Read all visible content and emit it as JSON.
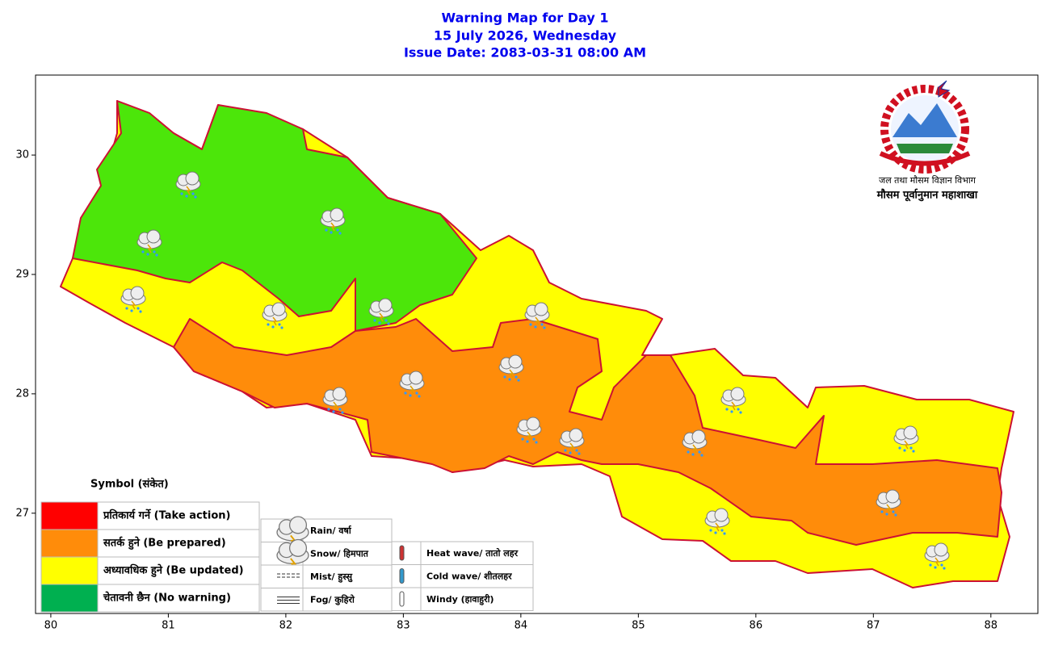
{
  "header": {
    "title": [
      "Warning Map for Day 1",
      "15 July 2026, Wednesday",
      "Issue Date: 2083-03-31 08:00 AM"
    ]
  },
  "map": {
    "xlim": [
      79.87,
      88.4
    ],
    "ylim": [
      26.16,
      30.67
    ],
    "xticks": [
      80,
      81,
      82,
      83,
      84,
      85,
      86,
      87,
      88
    ],
    "yticks": [
      27,
      28,
      29,
      30
    ]
  },
  "logo": {
    "line1": "जल तथा मौसम विज्ञान विभाग",
    "line2": "मौसम पूर्वानुमान महाशाखा"
  },
  "legend": {
    "title": "Symbol (संकेत)",
    "levels": [
      {
        "label": "प्रतिकार्य गर्ने (Take action)",
        "color": "#ff0000"
      },
      {
        "label": "सतर्क हुने (Be prepared)",
        "color": "#ff8c0a"
      },
      {
        "label": "अध्यावधिक हुने (Be updated)",
        "color": "#ffff00"
      },
      {
        "label": "चेतावनी छैन (No warning)",
        "color": "#00b050"
      }
    ],
    "symbols": [
      "Rain/ वर्षा",
      "Snow/ हिमपात",
      "Mist/ हुस्सु",
      "Fog/ कुहिरो"
    ],
    "symbols2": [
      "Heat wave/ तातो लहर",
      "Cold wave/ शीतलहर",
      "Windy (हावाहुरी)"
    ]
  }
}
